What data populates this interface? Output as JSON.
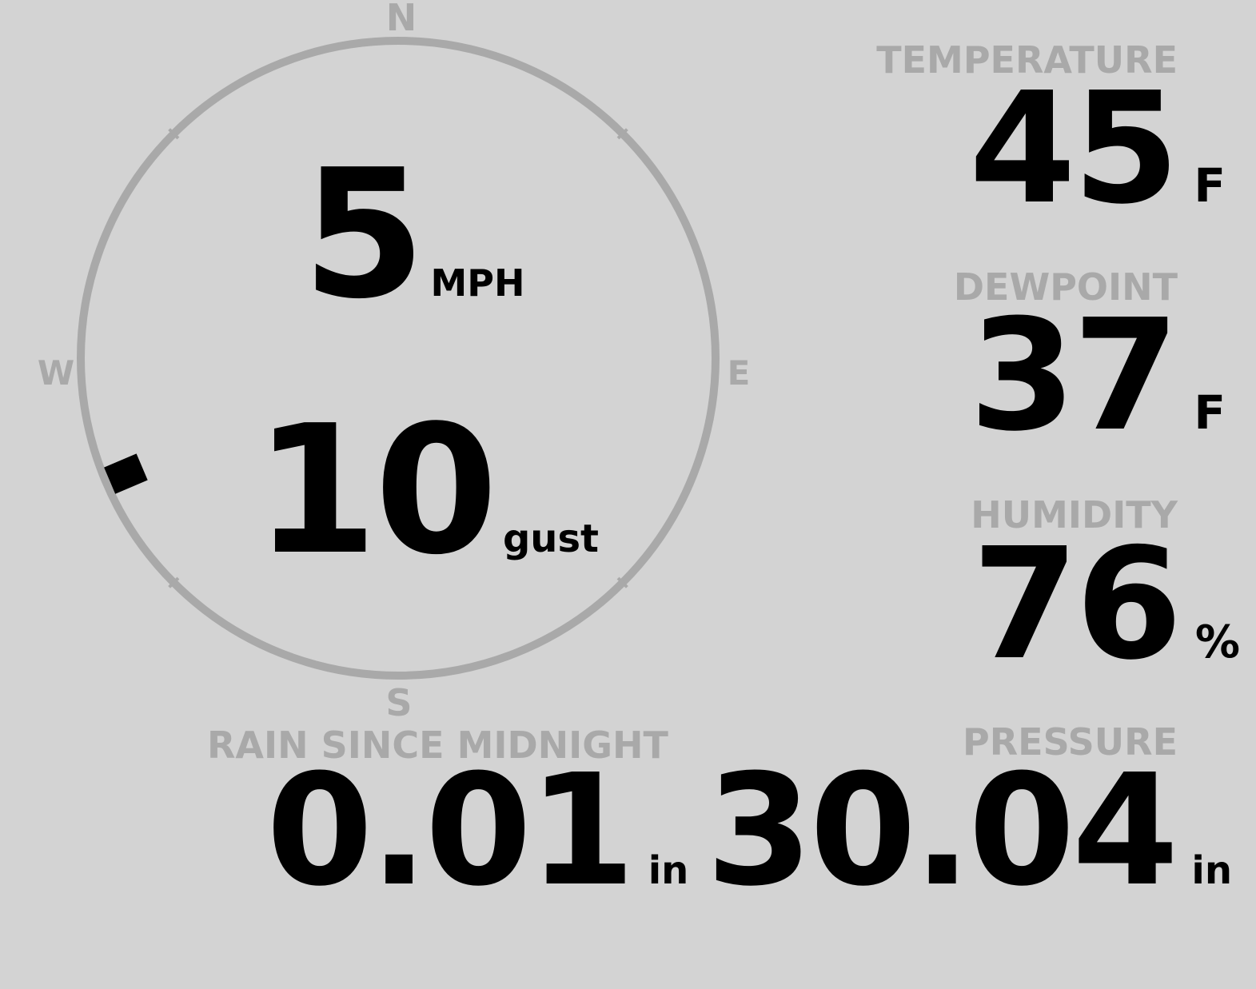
{
  "compass": {
    "north": "N",
    "south": "S",
    "east": "E",
    "west": "W",
    "wind_direction_deg": 247
  },
  "wind": {
    "speed": "5",
    "speed_unit": "MPH",
    "gust": "10",
    "gust_label": "gust"
  },
  "temperature": {
    "label": "TEMPERATURE",
    "value": "45",
    "unit": "F"
  },
  "dewpoint": {
    "label": "DEWPOINT",
    "value": "37",
    "unit": "F"
  },
  "humidity": {
    "label": "HUMIDITY",
    "value": "76",
    "unit": "%"
  },
  "rain": {
    "label": "RAIN SINCE MIDNIGHT",
    "value": "0.01",
    "unit": "in"
  },
  "pressure": {
    "label": "PRESSURE",
    "value": "30.04",
    "unit": "in"
  },
  "colors": {
    "background": "#d3d3d3",
    "label": "#a9a9a9",
    "value": "#000000"
  }
}
